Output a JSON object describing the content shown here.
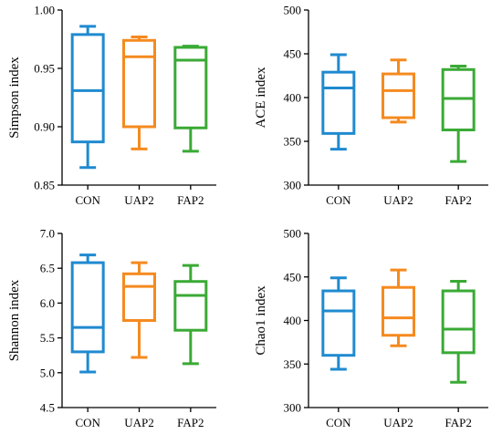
{
  "colors": {
    "CON": "#1f8ad0",
    "UAP2": "#f58a1f",
    "FAP2": "#3aaa35",
    "axis": "#000000"
  },
  "chart_data": [
    {
      "type": "box",
      "ylabel": "Simpson index",
      "categories": [
        "CON",
        "UAP2",
        "FAP2"
      ],
      "ylim": [
        0.85,
        1.0
      ],
      "yticks": [
        "0.85",
        "0.90",
        "0.95",
        "1.00"
      ],
      "ytick_values": [
        0.85,
        0.9,
        0.95,
        1.0
      ],
      "series": [
        {
          "category": "CON",
          "min": 0.865,
          "q1": 0.887,
          "median": 0.931,
          "q3": 0.979,
          "max": 0.986
        },
        {
          "category": "UAP2",
          "min": 0.881,
          "q1": 0.9,
          "median": 0.96,
          "q3": 0.974,
          "max": 0.977
        },
        {
          "category": "FAP2",
          "min": 0.879,
          "q1": 0.899,
          "median": 0.957,
          "q3": 0.968,
          "max": 0.969
        }
      ]
    },
    {
      "type": "box",
      "ylabel": "ACE index",
      "categories": [
        "CON",
        "UAP2",
        "FAP2"
      ],
      "ylim": [
        300,
        500
      ],
      "yticks": [
        "300",
        "350",
        "400",
        "450",
        "500"
      ],
      "ytick_values": [
        300,
        350,
        400,
        450,
        500
      ],
      "series": [
        {
          "category": "CON",
          "min": 341,
          "q1": 359,
          "median": 411,
          "q3": 429,
          "max": 449
        },
        {
          "category": "UAP2",
          "min": 372,
          "q1": 377,
          "median": 408,
          "q3": 427,
          "max": 443
        },
        {
          "category": "FAP2",
          "min": 327,
          "q1": 363,
          "median": 399,
          "q3": 432,
          "max": 436
        }
      ]
    },
    {
      "type": "box",
      "ylabel": "Shannon index",
      "categories": [
        "CON",
        "UAP2",
        "FAP2"
      ],
      "ylim": [
        4.5,
        7.0
      ],
      "yticks": [
        "4.5",
        "5.0",
        "5.5",
        "6.0",
        "6.5",
        "7.0"
      ],
      "ytick_values": [
        4.5,
        5.0,
        5.5,
        6.0,
        6.5,
        7.0
      ],
      "series": [
        {
          "category": "CON",
          "min": 5.01,
          "q1": 5.3,
          "median": 5.65,
          "q3": 6.58,
          "max": 6.69
        },
        {
          "category": "UAP2",
          "min": 5.22,
          "q1": 5.75,
          "median": 6.24,
          "q3": 6.42,
          "max": 6.58
        },
        {
          "category": "FAP2",
          "min": 5.13,
          "q1": 5.61,
          "median": 6.11,
          "q3": 6.31,
          "max": 6.54
        }
      ]
    },
    {
      "type": "box",
      "ylabel": "Chao1 index",
      "categories": [
        "CON",
        "UAP2",
        "FAP2"
      ],
      "ylim": [
        300,
        500
      ],
      "yticks": [
        "300",
        "350",
        "400",
        "450",
        "500"
      ],
      "ytick_values": [
        300,
        350,
        400,
        450,
        500
      ],
      "series": [
        {
          "category": "CON",
          "min": 344,
          "q1": 360,
          "median": 411,
          "q3": 434,
          "max": 449
        },
        {
          "category": "UAP2",
          "min": 371,
          "q1": 383,
          "median": 403,
          "q3": 438,
          "max": 458
        },
        {
          "category": "FAP2",
          "min": 329,
          "q1": 363,
          "median": 390,
          "q3": 434,
          "max": 445
        }
      ]
    }
  ]
}
